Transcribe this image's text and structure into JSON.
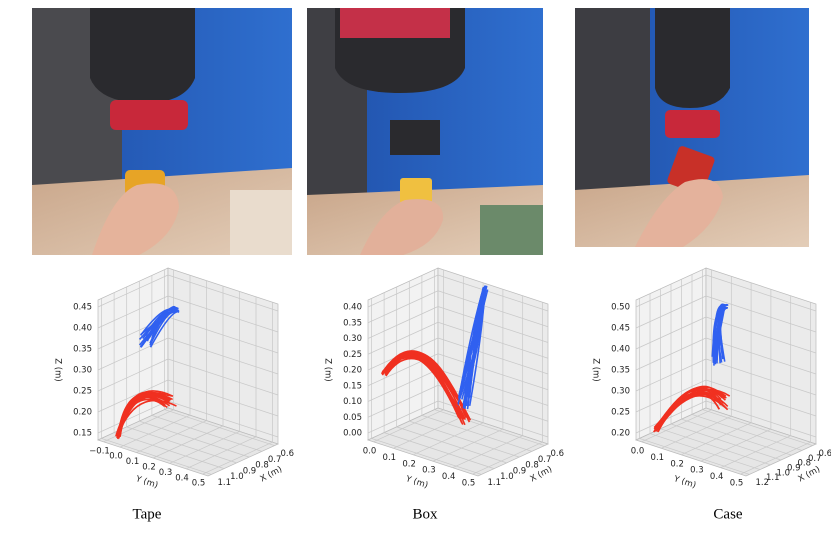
{
  "panels": [
    {
      "caption": "Tape",
      "z_label": "Z (m)",
      "y_label": "Y (m)",
      "x_label": "X (m)",
      "z_ticks": [
        "0.15",
        "0.20",
        "0.25",
        "0.30",
        "0.35",
        "0.40",
        "0.45"
      ],
      "y_ticks": [
        "−0.1",
        "0.0",
        "0.1",
        "0.2",
        "0.3",
        "0.4",
        "0.5"
      ],
      "x_ticks": [
        "1.1",
        "1.0",
        "0.9",
        "0.8",
        "0.7",
        "0.6"
      ]
    },
    {
      "caption": "Box",
      "z_label": "Z (m)",
      "y_label": "Y (m)",
      "x_label": "X (m)",
      "z_ticks": [
        "0.00",
        "0.05",
        "0.10",
        "0.15",
        "0.20",
        "0.25",
        "0.30",
        "0.35",
        "0.40"
      ],
      "y_ticks": [
        "0.0",
        "0.1",
        "0.2",
        "0.3",
        "0.4",
        "0.5"
      ],
      "x_ticks": [
        "1.1",
        "1.0",
        "0.9",
        "0.8",
        "0.7",
        "0.6"
      ]
    },
    {
      "caption": "Case",
      "z_label": "Z (m)",
      "y_label": "Y (m)",
      "x_label": "X (m)",
      "z_ticks": [
        "0.20",
        "0.25",
        "0.30",
        "0.35",
        "0.40",
        "0.45",
        "0.50"
      ],
      "y_ticks": [
        "0.0",
        "0.1",
        "0.2",
        "0.3",
        "0.4",
        "0.5"
      ],
      "x_ticks": [
        "1.2",
        "1.1",
        "1.0",
        "0.9",
        "0.8",
        "0.7",
        "0.6"
      ]
    }
  ]
}
